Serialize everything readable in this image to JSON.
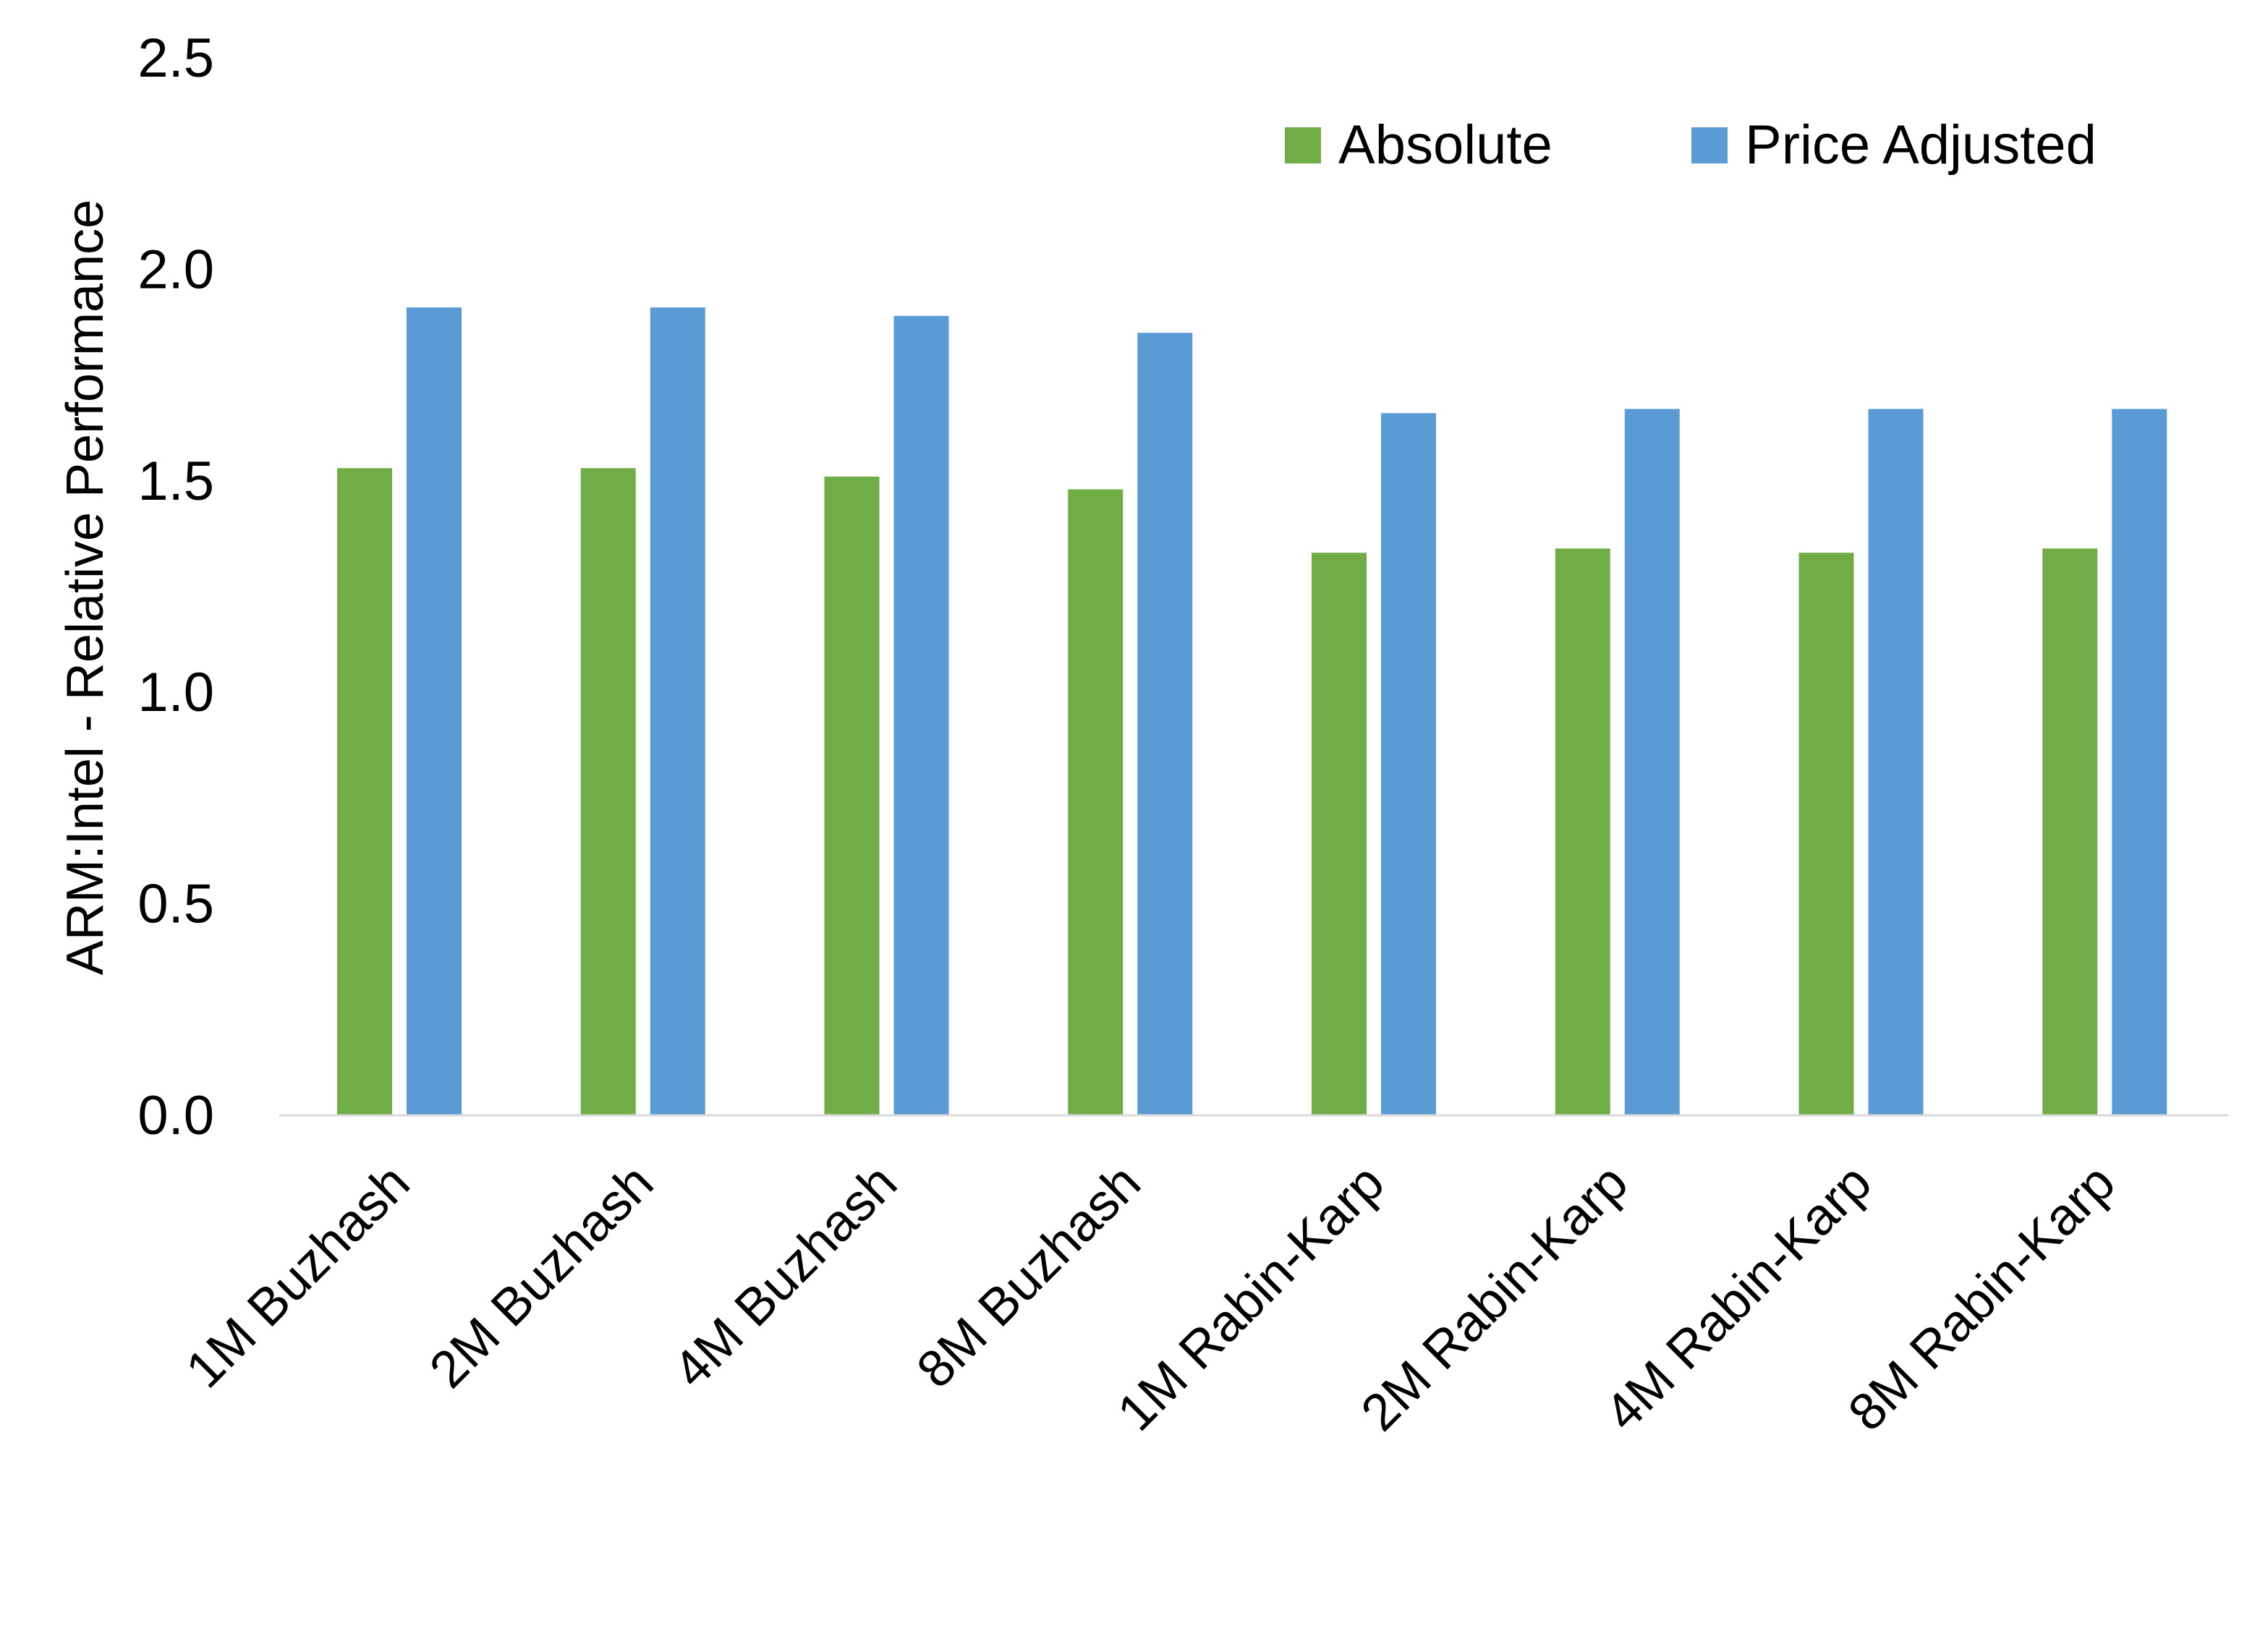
{
  "chart_data": {
    "type": "bar",
    "title": "",
    "xlabel": "",
    "ylabel": "ARM:Intel - Relative Performance",
    "ylim": [
      0,
      2.5
    ],
    "yticks": [
      "0.0",
      "0.5",
      "1.0",
      "1.5",
      "2.0",
      "2.5"
    ],
    "grid": false,
    "legend_position": "top-right",
    "categories": [
      "1M Buzhash",
      "2M Buzhash",
      "4M Buzhash",
      "8M Buzhash",
      "1M Rabin-Karp",
      "2M Rabin-Karp",
      "4M Rabin-Karp",
      "8M Rabin-Karp"
    ],
    "series": [
      {
        "name": "Absolute",
        "color": "#70AD47",
        "values": [
          1.53,
          1.53,
          1.51,
          1.48,
          1.33,
          1.34,
          1.33,
          1.34
        ]
      },
      {
        "name": "Price Adjusted",
        "color": "#5B9BD5",
        "values": [
          1.91,
          1.91,
          1.89,
          1.85,
          1.66,
          1.67,
          1.67,
          1.67
        ]
      }
    ]
  }
}
